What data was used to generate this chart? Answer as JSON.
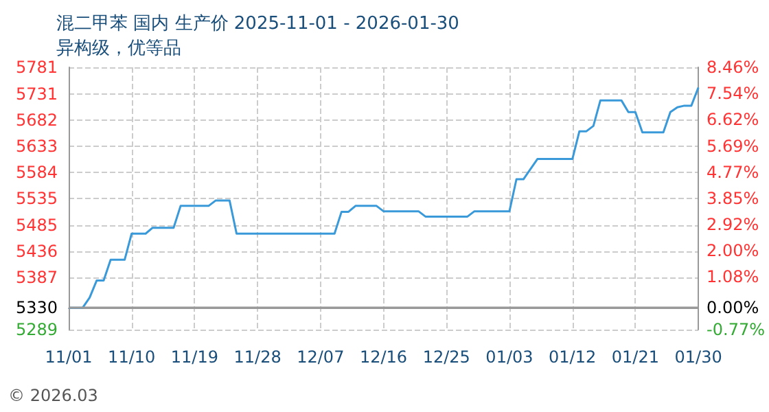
{
  "chart_data": {
    "type": "line",
    "title": "混二甲苯 国内 生产价 2025-11-01 - 2026-01-30",
    "subtitle": "异构级，优等品",
    "x": [
      "2025-11-01",
      "2025-11-03",
      "2025-11-04",
      "2025-11-05",
      "2025-11-06",
      "2025-11-07",
      "2025-11-09",
      "2025-11-10",
      "2025-11-12",
      "2025-11-13",
      "2025-11-16",
      "2025-11-17",
      "2025-11-21",
      "2025-11-22",
      "2025-11-24",
      "2025-11-25",
      "2025-12-09",
      "2025-12-10",
      "2025-12-11",
      "2025-12-12",
      "2025-12-15",
      "2025-12-16",
      "2025-12-21",
      "2025-12-22",
      "2025-12-28",
      "2025-12-29",
      "2026-01-03",
      "2026-01-04",
      "2026-01-05",
      "2026-01-07",
      "2026-01-12",
      "2026-01-13",
      "2026-01-14",
      "2026-01-15",
      "2026-01-16",
      "2026-01-19",
      "2026-01-20",
      "2026-01-21",
      "2026-01-22",
      "2026-01-25",
      "2026-01-26",
      "2026-01-27",
      "2026-01-28",
      "2026-01-29",
      "2026-01-30"
    ],
    "series": [
      {
        "color": "#3a9ad9",
        "values": [
          5330,
          5330,
          5349,
          5381,
          5381,
          5420,
          5420,
          5469,
          5469,
          5480,
          5480,
          5521,
          5521,
          5531,
          5531,
          5469,
          5469,
          5510,
          5510,
          5521,
          5521,
          5511,
          5511,
          5501,
          5501,
          5511,
          5511,
          5571,
          5571,
          5609,
          5609,
          5661,
          5661,
          5671,
          5719,
          5719,
          5697,
          5697,
          5659,
          5659,
          5697,
          5706,
          5709,
          5709,
          5743
        ]
      }
    ],
    "xlim": [
      "2025-11-01",
      "2026-01-30"
    ],
    "xticks": [
      {
        "value": "2025-11-01",
        "label": "11/01"
      },
      {
        "value": "2025-11-10",
        "label": "11/10"
      },
      {
        "value": "2025-11-19",
        "label": "11/19"
      },
      {
        "value": "2025-11-28",
        "label": "11/28"
      },
      {
        "value": "2025-12-07",
        "label": "12/07"
      },
      {
        "value": "2025-12-16",
        "label": "12/16"
      },
      {
        "value": "2025-12-25",
        "label": "12/25"
      },
      {
        "value": "2026-01-03",
        "label": "01/03"
      },
      {
        "value": "2026-01-12",
        "label": "01/12"
      },
      {
        "value": "2026-01-21",
        "label": "01/21"
      },
      {
        "value": "2026-01-30",
        "label": "01/30"
      }
    ],
    "ylim": [
      5289,
      5781
    ],
    "yticks": [
      5289,
      5330,
      5387,
      5436,
      5485,
      5535,
      5584,
      5633,
      5682,
      5731,
      5781
    ],
    "y2lim": [
      -0.77,
      8.46
    ],
    "y2ticks": [
      {
        "value": -0.77,
        "label": "-0.77%"
      },
      {
        "value": 0,
        "label": "0.00%"
      },
      {
        "value": 1.08,
        "label": "1.08%"
      },
      {
        "value": 2,
        "label": "2.00%"
      },
      {
        "value": 2.92,
        "label": "2.92%"
      },
      {
        "value": 3.85,
        "label": "3.85%"
      },
      {
        "value": 4.77,
        "label": "4.77%"
      },
      {
        "value": 5.69,
        "label": "5.69%"
      },
      {
        "value": 6.62,
        "label": "6.62%"
      },
      {
        "value": 7.54,
        "label": "7.54%"
      },
      {
        "value": 8.46,
        "label": "8.46%"
      }
    ],
    "ref_lines": [
      {
        "axis": "y",
        "value": 5330,
        "color": "#999999"
      }
    ],
    "annotations": [
      "© 2026.03"
    ],
    "grid": true,
    "marker": "none",
    "line_style": "solid"
  }
}
